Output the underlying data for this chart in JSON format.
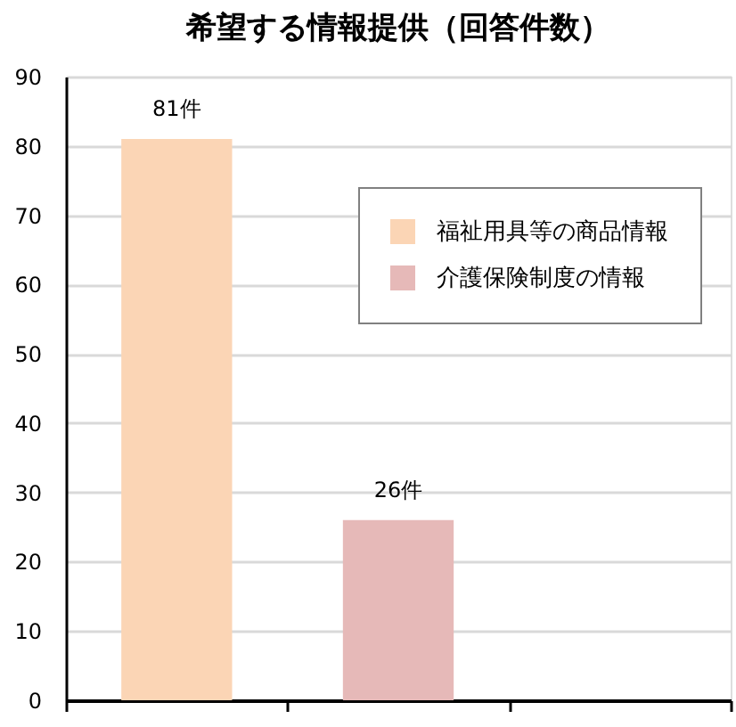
{
  "chart_data": {
    "type": "bar",
    "title": "希望する情報提供（回答件数）",
    "categories": [
      null,
      null,
      null
    ],
    "series": [
      {
        "name": "福祉用具等の商品情報",
        "color": "#fbd5b5",
        "values": [
          81,
          null,
          null
        ],
        "value_labels": [
          "81件",
          null,
          null
        ]
      },
      {
        "name": "介護保険制度の情報",
        "color": "#e6b9b8",
        "values": [
          null,
          26,
          null
        ],
        "value_labels": [
          null,
          "26件",
          null
        ]
      }
    ],
    "ylim": [
      0,
      90
    ],
    "yticks": [
      0,
      10,
      20,
      30,
      40,
      50,
      60,
      70,
      80,
      90
    ],
    "grid": "y",
    "legend": "top right",
    "tick_labels": "y"
  }
}
